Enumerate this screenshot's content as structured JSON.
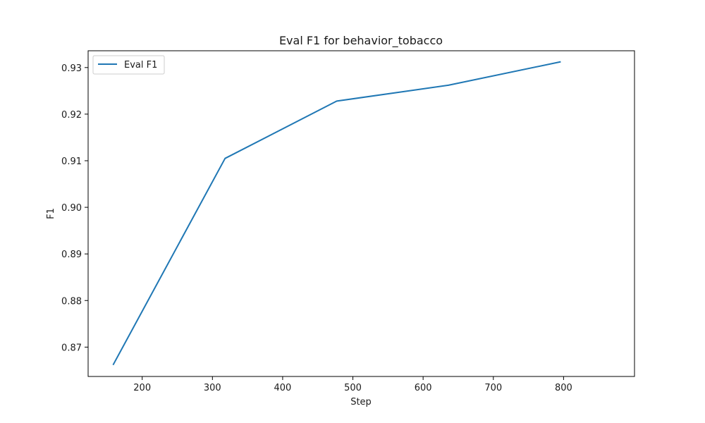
{
  "chart_data": {
    "type": "line",
    "title": "Eval F1 for behavior_tobacco",
    "xlabel": "Step",
    "ylabel": "F1",
    "xlim": [
      123,
      901
    ],
    "ylim": [
      0.8637,
      0.9336
    ],
    "xticks": [
      200,
      300,
      400,
      500,
      600,
      700,
      800
    ],
    "yticks": [
      0.87,
      0.88,
      0.89,
      0.9,
      0.91,
      0.92,
      0.93
    ],
    "ytick_labels": [
      "0.87",
      "0.88",
      "0.89",
      "0.90",
      "0.91",
      "0.92",
      "0.93"
    ],
    "grid": false,
    "legend_position": "top-left",
    "series": [
      {
        "name": "Eval F1",
        "color": "#1f77b4",
        "x": [
          159,
          318,
          477,
          636,
          795
        ],
        "y": [
          0.8663,
          0.9105,
          0.9228,
          0.9262,
          0.9312
        ]
      }
    ]
  }
}
